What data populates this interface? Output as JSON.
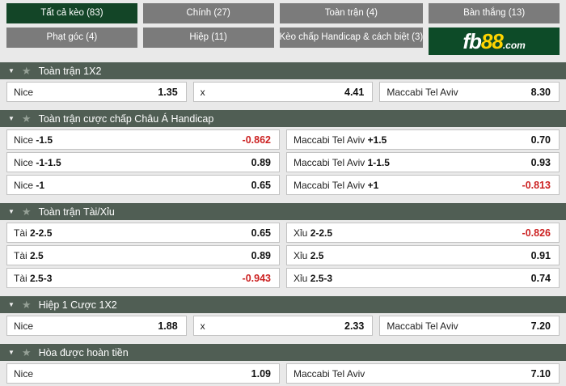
{
  "tabs": [
    {
      "label": "Tất cả kèo (83)",
      "selected": true
    },
    {
      "label": "Chính (27)",
      "selected": false
    },
    {
      "label": "Toàn trận (4)",
      "selected": false
    },
    {
      "label": "Bàn thắng (13)",
      "selected": false
    },
    {
      "label": "Phạt góc (4)",
      "selected": false
    },
    {
      "label": "Hiệp (11)",
      "selected": false
    },
    {
      "label": "Kèo chấp Handicap & cách biệt (3)",
      "selected": false
    }
  ],
  "logo": {
    "fb": "fb",
    "eights": "88",
    "dotcom": ".com"
  },
  "icons": {
    "caret": "▼",
    "star": "★"
  },
  "colors": {
    "brand_green": "#0d4b28",
    "tab_selected_green": "#134527",
    "tab_gray": "#7b7b7b",
    "section_header": "#505e54",
    "negative_odds_red": "#cc2222",
    "logo_yellow": "#ffd400"
  },
  "sections": [
    {
      "title": "Toàn trận 1X2",
      "rows": [
        [
          {
            "name": "Nice",
            "odds": "1.35"
          },
          {
            "name": "x",
            "odds": "4.41"
          },
          {
            "name": "Maccabi Tel Aviv",
            "odds": "8.30"
          }
        ]
      ]
    },
    {
      "title": "Toàn trận cược chấp Châu Á Handicap",
      "rows": [
        [
          {
            "name": "Nice",
            "hc": "-1.5",
            "odds": "-0.862",
            "neg": true
          },
          {
            "name": "Maccabi Tel Aviv",
            "hc": "+1.5",
            "odds": "0.70"
          }
        ],
        [
          {
            "name": "Nice",
            "hc": "-1-1.5",
            "odds": "0.89"
          },
          {
            "name": "Maccabi Tel Aviv",
            "hc": "1-1.5",
            "odds": "0.93"
          }
        ],
        [
          {
            "name": "Nice",
            "hc": "-1",
            "odds": "0.65"
          },
          {
            "name": "Maccabi Tel Aviv",
            "hc": "+1",
            "odds": "-0.813",
            "neg": true
          }
        ]
      ]
    },
    {
      "title": "Toàn trận Tài/Xỉu",
      "rows": [
        [
          {
            "name": "Tài",
            "hc": "2-2.5",
            "odds": "0.65"
          },
          {
            "name": "Xỉu",
            "hc": "2-2.5",
            "odds": "-0.826",
            "neg": true
          }
        ],
        [
          {
            "name": "Tài",
            "hc": "2.5",
            "odds": "0.89"
          },
          {
            "name": "Xỉu",
            "hc": "2.5",
            "odds": "0.91"
          }
        ],
        [
          {
            "name": "Tài",
            "hc": "2.5-3",
            "odds": "-0.943",
            "neg": true
          },
          {
            "name": "Xỉu",
            "hc": "2.5-3",
            "odds": "0.74"
          }
        ]
      ]
    },
    {
      "title": "Hiệp 1 Cược 1X2",
      "rows": [
        [
          {
            "name": "Nice",
            "odds": "1.88"
          },
          {
            "name": "x",
            "odds": "2.33"
          },
          {
            "name": "Maccabi Tel Aviv",
            "odds": "7.20"
          }
        ]
      ]
    },
    {
      "title": "Hòa được hoàn tiền",
      "rows": [
        [
          {
            "name": "Nice",
            "odds": "1.09"
          },
          {
            "name": "Maccabi Tel Aviv",
            "odds": "7.10"
          }
        ]
      ]
    }
  ]
}
